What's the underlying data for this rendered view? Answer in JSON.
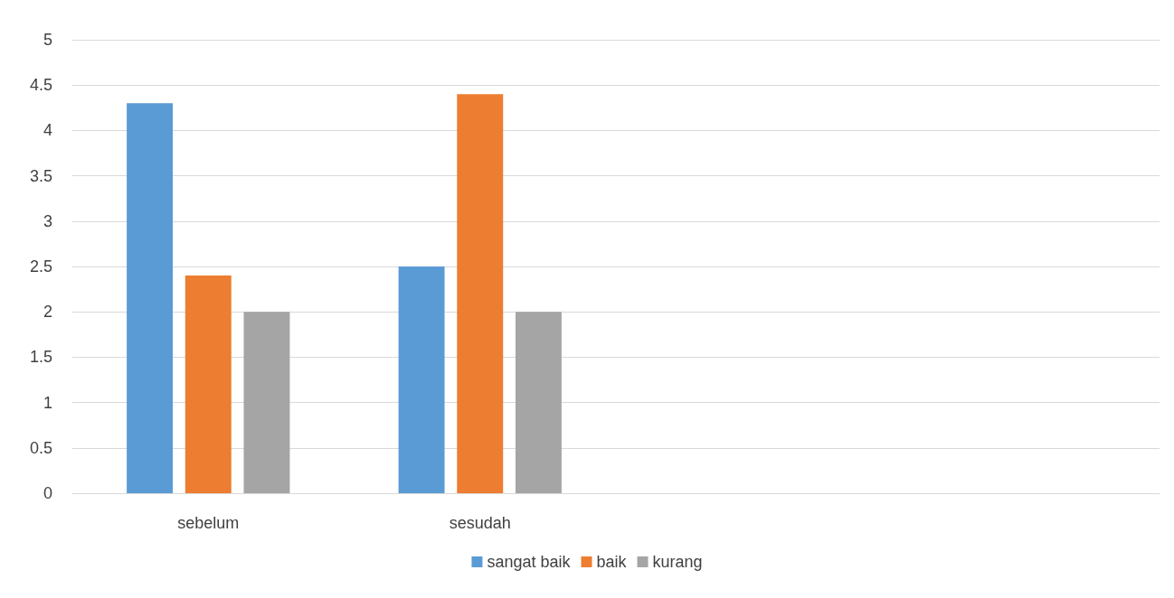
{
  "chart_data": {
    "type": "bar",
    "categories": [
      "sebelum",
      "sesudah",
      null,
      null
    ],
    "series": [
      {
        "name": "sangat baik",
        "color": "#5b9bd5",
        "values": [
          4.3,
          2.5,
          null,
          null
        ]
      },
      {
        "name": "baik",
        "color": "#ed7d31",
        "values": [
          2.4,
          4.4,
          null,
          null
        ]
      },
      {
        "name": "kurang",
        "color": "#a5a5a5",
        "values": [
          2,
          2,
          null,
          null
        ]
      }
    ],
    "ylim": [
      0,
      5
    ],
    "yticks": [
      0,
      0.5,
      1,
      1.5,
      2,
      2.5,
      3,
      3.5,
      4,
      4.5,
      5
    ],
    "grid": "y",
    "legend": "bottom"
  }
}
